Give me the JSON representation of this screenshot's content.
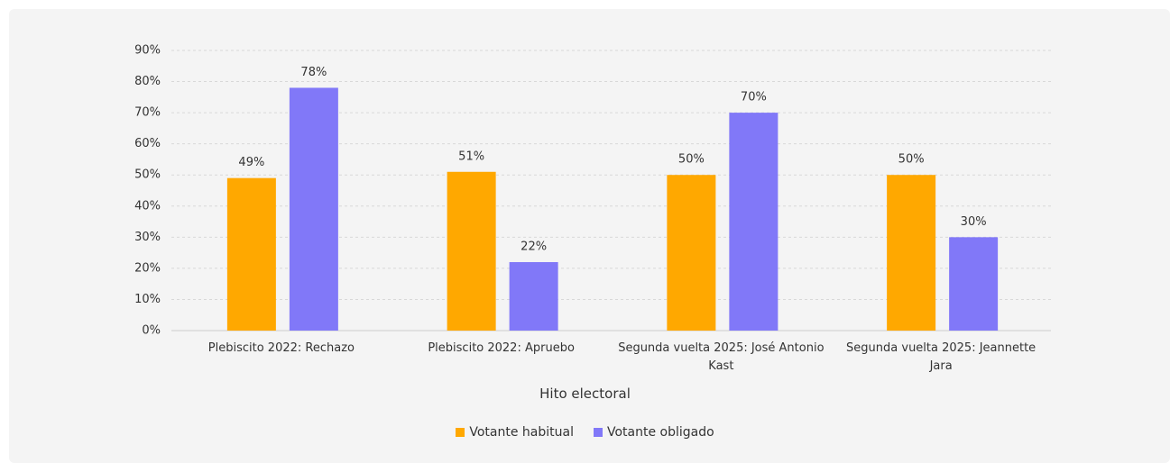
{
  "chart_data": {
    "type": "bar",
    "x_label": "Hito electoral",
    "categories": [
      "Plebiscito 2022: Rechazo",
      "Plebiscito 2022: Apruebo",
      "Segunda vuelta 2025: José Antonio Kast",
      "Segunda vuelta 2025: Jeannette Jara"
    ],
    "series": [
      {
        "name": "Votante habitual",
        "color": "#ffa800",
        "values": [
          49,
          51,
          50,
          50
        ],
        "value_labels": [
          "49%",
          "51%",
          "50%",
          "50%"
        ]
      },
      {
        "name": "Votante obligado",
        "color": "#8178f8",
        "values": [
          78,
          22,
          70,
          30
        ],
        "value_labels": [
          "78%",
          "22%",
          "70%",
          "30%"
        ]
      }
    ],
    "ylim": [
      0,
      90
    ],
    "yticks": [
      {
        "value": 0,
        "label": "0%"
      },
      {
        "value": 10,
        "label": "10%"
      },
      {
        "value": 20,
        "label": "20%"
      },
      {
        "value": 30,
        "label": "30%"
      },
      {
        "value": 40,
        "label": "40%"
      },
      {
        "value": 50,
        "label": "50%"
      },
      {
        "value": 60,
        "label": "60%"
      },
      {
        "value": 70,
        "label": "70%"
      },
      {
        "value": 80,
        "label": "80%"
      },
      {
        "value": 90,
        "label": "90%"
      }
    ],
    "grid": true,
    "legend": "bottom"
  }
}
